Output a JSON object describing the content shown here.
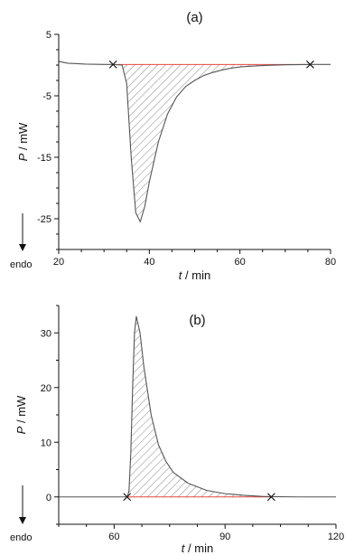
{
  "chart_data": [
    {
      "type": "line",
      "panel_label": "(a)",
      "xlabel_var": "t",
      "xlabel_unit": " / min",
      "ylabel_var": "P",
      "ylabel_unit": " / mW",
      "direction_label": "endo",
      "xlim": [
        20,
        80
      ],
      "ylim": [
        -30,
        5
      ],
      "xticks": [
        20,
        40,
        60,
        80
      ],
      "yticks": [
        5,
        -5,
        -15,
        -25
      ],
      "x_minor_step": 5,
      "y_minor_step": 2.5,
      "baseline_color": "#e8463c",
      "curve_color": "#555555",
      "markers": [
        {
          "x": 32,
          "y": 0.1
        },
        {
          "x": 75.5,
          "y": 0.1
        }
      ],
      "series": [
        {
          "x": [
            20,
            22,
            26,
            30,
            32,
            34,
            35,
            36,
            37,
            38,
            39,
            40,
            42,
            44,
            46,
            48,
            50,
            52,
            54,
            56,
            58,
            60,
            62,
            66,
            70,
            75.5,
            80
          ],
          "y": [
            0.6,
            0.3,
            0.15,
            0.1,
            0.1,
            0.0,
            -3,
            -15,
            -24,
            -25.5,
            -23,
            -19,
            -12.5,
            -8,
            -5.2,
            -3.5,
            -2.5,
            -1.7,
            -1.2,
            -0.8,
            -0.5,
            -0.3,
            -0.2,
            -0.05,
            0.05,
            0.1,
            0.1
          ]
        }
      ]
    },
    {
      "type": "line",
      "panel_label": "(b)",
      "xlabel_var": "t",
      "xlabel_unit": " / min",
      "ylabel_var": "P",
      "ylabel_unit": " / mW",
      "direction_label": "endo",
      "xlim": [
        45,
        120
      ],
      "ylim": [
        -5,
        35
      ],
      "xticks": [
        60,
        90,
        120
      ],
      "yticks": [
        0,
        10,
        20,
        30
      ],
      "x_minor_step": 7.5,
      "y_minor_step": 5,
      "baseline_color": "#e8463c",
      "curve_color": "#555555",
      "markers": [
        {
          "x": 63.5,
          "y": 0
        },
        {
          "x": 102.5,
          "y": 0
        }
      ],
      "series": [
        {
          "x": [
            45,
            50,
            55,
            60,
            62,
            63.5,
            64,
            64.5,
            65,
            65.5,
            66,
            67,
            68,
            70,
            72,
            74,
            76,
            80,
            85,
            90,
            95,
            100,
            102.5,
            110,
            120
          ],
          "y": [
            0,
            0,
            0,
            0,
            0,
            0,
            1,
            8,
            20,
            30,
            33,
            30,
            24,
            15,
            9.5,
            6.5,
            4.5,
            2.5,
            1.2,
            0.6,
            0.3,
            0.1,
            0.05,
            0,
            0
          ]
        }
      ]
    }
  ]
}
